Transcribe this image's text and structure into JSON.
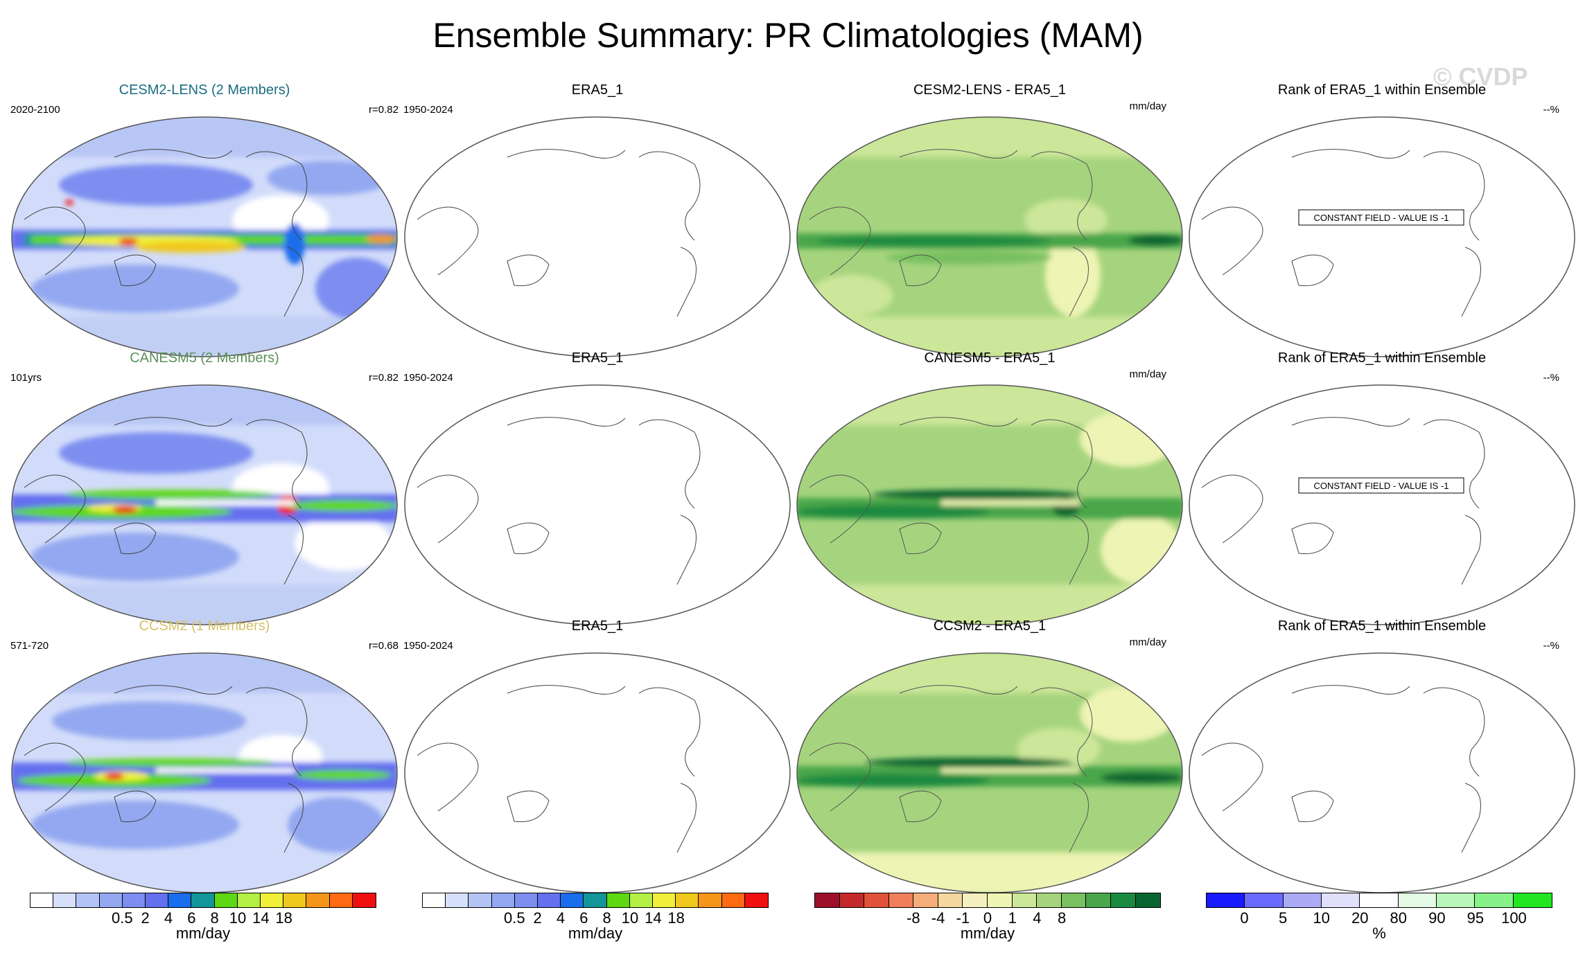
{
  "title": "Ensemble Summary: PR Climatologies (MAM)",
  "watermark": "© CVDP",
  "colors": {
    "lens": "#1a6d80",
    "canesm": "#5a8f5a",
    "ccsm": "#d6c06a"
  },
  "rows": [
    {
      "model": {
        "title": "CESM2-LENS (2 Members)",
        "left": "2020-2100",
        "right": "r=0.82"
      },
      "obs": {
        "title": "ERA5_1",
        "left": "1950-2024"
      },
      "diff": {
        "title": "CESM2-LENS - ERA5_1",
        "right": "mm/day"
      },
      "rank": {
        "title": "Rank of ERA5_1 within Ensemble",
        "right": "--%",
        "note": "CONSTANT FIELD - VALUE IS -1"
      }
    },
    {
      "model": {
        "title": "CANESM5 (2 Members)",
        "left": "101yrs",
        "right": "r=0.82"
      },
      "obs": {
        "title": "ERA5_1",
        "left": "1950-2024"
      },
      "diff": {
        "title": "CANESM5 - ERA5_1",
        "right": "mm/day"
      },
      "rank": {
        "title": "Rank of ERA5_1 within Ensemble",
        "right": "--%",
        "note": "CONSTANT FIELD - VALUE IS -1"
      }
    },
    {
      "model": {
        "title": "CCSM2 (1 Members)",
        "left": "571-720",
        "right": "r=0.68"
      },
      "obs": {
        "title": "ERA5_1",
        "left": "1950-2024"
      },
      "diff": {
        "title": "CCSM2 - ERA5_1",
        "right": "mm/day"
      },
      "rank": {
        "title": "Rank of ERA5_1 within Ensemble",
        "right": "--%"
      }
    }
  ],
  "chart_data": {
    "type": "heatmap",
    "title": "Ensemble Summary: PR Climatologies (MAM)",
    "projection": "global map",
    "colorbars": [
      {
        "id": "pr1",
        "ticks": [
          "0.5",
          "2",
          "4",
          "6",
          "8",
          "10",
          "14",
          "18"
        ],
        "unit": "mm/day",
        "colors": [
          "#ffffff",
          "#d7e0fa",
          "#b3c3f5",
          "#93a8f0",
          "#7d8ef0",
          "#6470ee",
          "#1a6dec",
          "#12969a",
          "#5ed812",
          "#b3f043",
          "#f0f03a",
          "#f0c81e",
          "#f5961a",
          "#ff6a12",
          "#f01010"
        ]
      },
      {
        "id": "pr2",
        "ticks": [
          "0.5",
          "2",
          "4",
          "6",
          "8",
          "10",
          "14",
          "18"
        ],
        "unit": "mm/day",
        "colors": [
          "#ffffff",
          "#d7e0fa",
          "#b3c3f5",
          "#93a8f0",
          "#7d8ef0",
          "#6470ee",
          "#1a6dec",
          "#12969a",
          "#5ed812",
          "#b3f043",
          "#f0f03a",
          "#f0c81e",
          "#f5961a",
          "#ff6a12",
          "#f01010"
        ]
      },
      {
        "id": "diff",
        "ticks": [
          "-8",
          "-4",
          "-1",
          "0",
          "1",
          "4",
          "8"
        ],
        "unit": "mm/day",
        "colors": [
          "#9e0f2a",
          "#c52a2a",
          "#e0523a",
          "#f07f5a",
          "#f5ae7a",
          "#f5d89e",
          "#f5f0bf",
          "#eef4b4",
          "#cce69a",
          "#a6d47e",
          "#78c060",
          "#4aa64a",
          "#1b8a40",
          "#0a6630"
        ]
      },
      {
        "id": "rank",
        "ticks": [
          "0",
          "5",
          "10",
          "20",
          "80",
          "90",
          "95",
          "100"
        ],
        "unit": "%",
        "colors": [
          "#1a1aff",
          "#6a6aff",
          "#aaaaf5",
          "#e0e0fa",
          "#ffffff",
          "#e4fae4",
          "#b8f5b8",
          "#88f088",
          "#22e622"
        ]
      }
    ]
  }
}
